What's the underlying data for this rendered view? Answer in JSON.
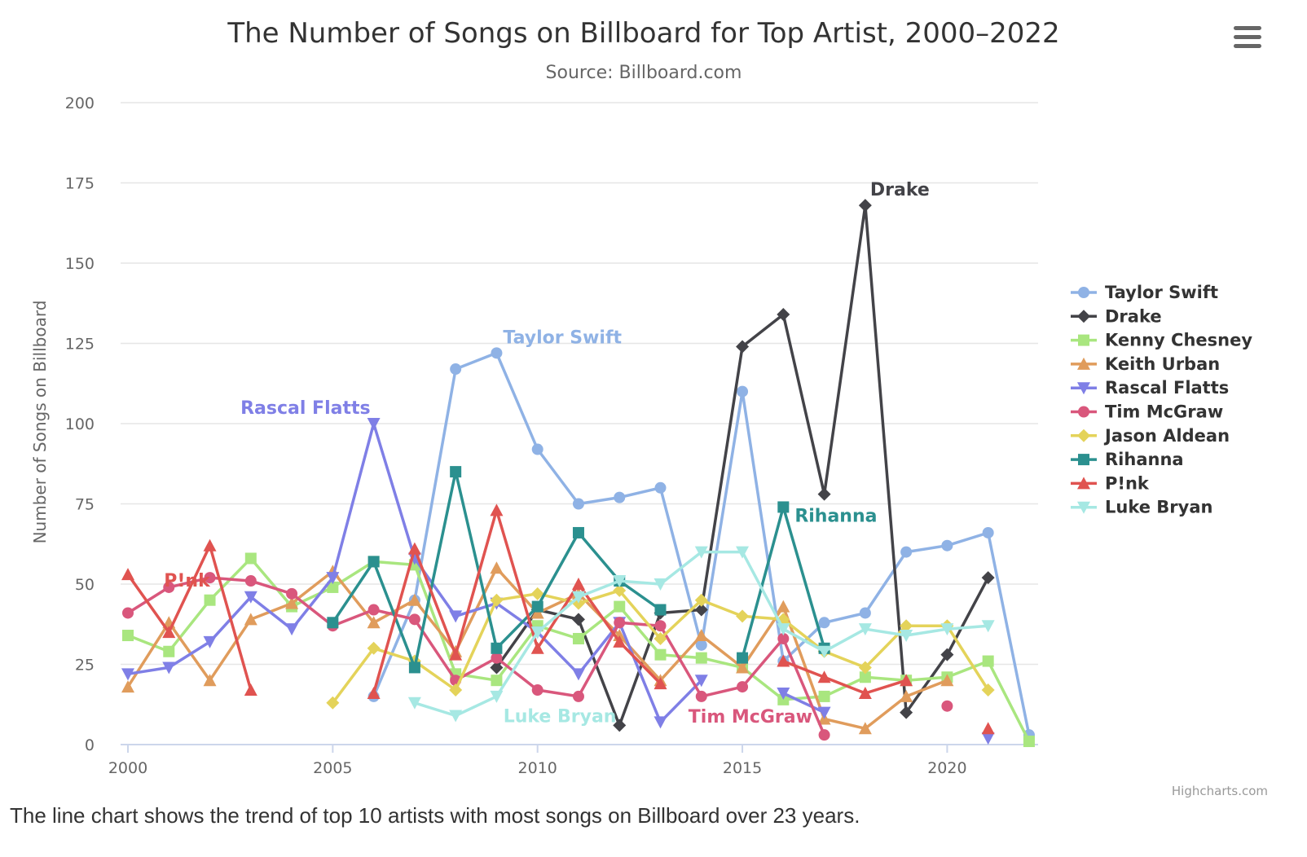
{
  "header": {
    "title": "The Number of Songs on Billboard for Top Artist, 2000–2022",
    "subtitle": "Source: Billboard.com",
    "menu_icon": "hamburger-menu-icon"
  },
  "credits": "Highcharts.com",
  "caption": "The line chart shows the trend of top 10 artists with most songs on Billboard over 23 years.",
  "chart_data": {
    "type": "line",
    "title": "The Number of Songs on Billboard for Top Artist, 2000–2022",
    "subtitle": "Source: Billboard.com",
    "xlabel": "",
    "ylabel": "Number of Songs on Billboard",
    "xlim": [
      2000,
      2022
    ],
    "ylim": [
      0,
      200
    ],
    "x_ticks": [
      2000,
      2005,
      2010,
      2015,
      2020
    ],
    "y_ticks": [
      0,
      25,
      50,
      75,
      100,
      125,
      150,
      175,
      200
    ],
    "grid": true,
    "legend_position": "right",
    "series": [
      {
        "name": "Taylor Swift",
        "color": "#8fb2e5",
        "marker": "circle",
        "label": {
          "text": "Taylor Swift",
          "year": 2009,
          "value": 122
        },
        "data": [
          [
            2006,
            15
          ],
          [
            2007,
            45
          ],
          [
            2008,
            117
          ],
          [
            2009,
            122
          ],
          [
            2010,
            92
          ],
          [
            2011,
            75
          ],
          [
            2012,
            77
          ],
          [
            2013,
            80
          ],
          [
            2014,
            31
          ],
          [
            2015,
            110
          ],
          [
            2016,
            26
          ],
          [
            2017,
            38
          ],
          [
            2018,
            41
          ],
          [
            2019,
            60
          ],
          [
            2020,
            62
          ],
          [
            2021,
            66
          ],
          [
            2022,
            3
          ]
        ]
      },
      {
        "name": "Drake",
        "color": "#434348",
        "marker": "diamond",
        "label": {
          "text": "Drake",
          "year": 2018,
          "value": 168
        },
        "data": [
          [
            2009,
            24
          ],
          [
            2010,
            42
          ],
          [
            2011,
            39
          ],
          [
            2012,
            6
          ],
          [
            2013,
            41
          ],
          [
            2014,
            42
          ],
          [
            2015,
            124
          ],
          [
            2016,
            134
          ],
          [
            2017,
            78
          ],
          [
            2018,
            168
          ],
          [
            2019,
            10
          ],
          [
            2020,
            28
          ],
          [
            2021,
            52
          ]
        ]
      },
      {
        "name": "Kenny Chesney",
        "color": "#a9e67f",
        "marker": "square",
        "data": [
          [
            2000,
            34
          ],
          [
            2001,
            29
          ],
          [
            2002,
            45
          ],
          [
            2003,
            58
          ],
          [
            2004,
            43
          ],
          [
            2005,
            49
          ],
          [
            2006,
            57
          ],
          [
            2007,
            56
          ],
          [
            2008,
            22
          ],
          [
            2009,
            20
          ],
          [
            2010,
            37
          ],
          [
            2011,
            33
          ],
          [
            2012,
            43
          ],
          [
            2013,
            28
          ],
          [
            2014,
            27
          ],
          [
            2015,
            24
          ],
          [
            2016,
            14
          ],
          [
            2017,
            15
          ],
          [
            2018,
            21
          ],
          [
            2019,
            20
          ],
          [
            2020,
            21
          ],
          [
            2021,
            26
          ],
          [
            2022,
            1
          ]
        ]
      },
      {
        "name": "Keith Urban",
        "color": "#e09c5c",
        "marker": "triangle",
        "data": [
          [
            2000,
            18
          ],
          [
            2001,
            38
          ],
          [
            2002,
            20
          ],
          [
            2003,
            39
          ],
          [
            2004,
            44
          ],
          [
            2005,
            54
          ],
          [
            2006,
            38
          ],
          [
            2007,
            45
          ],
          [
            2008,
            29
          ],
          [
            2009,
            55
          ],
          [
            2010,
            41
          ],
          [
            2011,
            47
          ],
          [
            2012,
            34
          ],
          [
            2013,
            20
          ],
          [
            2014,
            34
          ],
          [
            2015,
            24
          ],
          [
            2016,
            43
          ],
          [
            2017,
            8
          ],
          [
            2018,
            5
          ],
          [
            2019,
            15
          ],
          [
            2020,
            20
          ]
        ]
      },
      {
        "name": "Rascal Flatts",
        "color": "#7f7fe6",
        "marker": "triangle-down",
        "label": {
          "text": "Rascal Flatts",
          "year": 2006,
          "value": 100
        },
        "data": [
          [
            2000,
            22
          ],
          [
            2001,
            24
          ],
          [
            2002,
            32
          ],
          [
            2003,
            46
          ],
          [
            2004,
            36
          ],
          [
            2005,
            52
          ],
          [
            2006,
            100
          ],
          [
            2007,
            58
          ],
          [
            2008,
            40
          ],
          [
            2009,
            44
          ],
          [
            2010,
            35
          ],
          [
            2011,
            22
          ],
          [
            2012,
            38
          ],
          [
            2013,
            7
          ],
          [
            2014,
            20
          ],
          [
            2016,
            16
          ],
          [
            2017,
            10
          ],
          [
            2021,
            2
          ]
        ]
      },
      {
        "name": "Tim McGraw",
        "color": "#d9577c",
        "marker": "circle",
        "label": {
          "text": "Tim McGraw",
          "year": 2014,
          "value": 15
        },
        "data": [
          [
            2000,
            41
          ],
          [
            2001,
            49
          ],
          [
            2002,
            52
          ],
          [
            2003,
            51
          ],
          [
            2004,
            47
          ],
          [
            2005,
            37
          ],
          [
            2006,
            42
          ],
          [
            2007,
            39
          ],
          [
            2008,
            20
          ],
          [
            2009,
            27
          ],
          [
            2010,
            17
          ],
          [
            2011,
            15
          ],
          [
            2012,
            38
          ],
          [
            2013,
            37
          ],
          [
            2014,
            15
          ],
          [
            2015,
            18
          ],
          [
            2016,
            33
          ],
          [
            2017,
            3
          ],
          [
            2020,
            12
          ]
        ]
      },
      {
        "name": "Jason Aldean",
        "color": "#e4d35a",
        "marker": "diamond",
        "data": [
          [
            2005,
            13
          ],
          [
            2006,
            30
          ],
          [
            2007,
            26
          ],
          [
            2008,
            17
          ],
          [
            2009,
            45
          ],
          [
            2010,
            47
          ],
          [
            2011,
            44
          ],
          [
            2012,
            48
          ],
          [
            2013,
            33
          ],
          [
            2014,
            45
          ],
          [
            2015,
            40
          ],
          [
            2016,
            39
          ],
          [
            2017,
            29
          ],
          [
            2018,
            24
          ],
          [
            2019,
            37
          ],
          [
            2020,
            37
          ],
          [
            2021,
            17
          ]
        ]
      },
      {
        "name": "Rihanna",
        "color": "#2b908f",
        "marker": "square",
        "label": {
          "text": "Rihanna",
          "year": 2016,
          "value": 74
        },
        "data": [
          [
            2005,
            38
          ],
          [
            2006,
            57
          ],
          [
            2007,
            24
          ],
          [
            2008,
            85
          ],
          [
            2009,
            30
          ],
          [
            2010,
            43
          ],
          [
            2011,
            66
          ],
          [
            2012,
            51
          ],
          [
            2013,
            42
          ],
          [
            2015,
            27
          ],
          [
            2016,
            74
          ],
          [
            2017,
            30
          ]
        ]
      },
      {
        "name": "P!nk",
        "color": "#e05350",
        "marker": "triangle",
        "label": {
          "text": "P!nk",
          "year": 2001,
          "value": 36
        },
        "data": [
          [
            2000,
            53
          ],
          [
            2001,
            35
          ],
          [
            2002,
            62
          ],
          [
            2003,
            17
          ],
          [
            2006,
            16
          ],
          [
            2007,
            61
          ],
          [
            2008,
            28
          ],
          [
            2009,
            73
          ],
          [
            2010,
            30
          ],
          [
            2011,
            50
          ],
          [
            2012,
            32
          ],
          [
            2013,
            19
          ],
          [
            2016,
            26
          ],
          [
            2017,
            21
          ],
          [
            2018,
            16
          ],
          [
            2019,
            20
          ],
          [
            2021,
            5
          ]
        ]
      },
      {
        "name": "Luke Bryan",
        "color": "#a6e8e3",
        "marker": "triangle-down",
        "label": {
          "text": "Luke Bryan",
          "year": 2010,
          "value": 10
        },
        "data": [
          [
            2007,
            13
          ],
          [
            2008,
            9
          ],
          [
            2009,
            15
          ],
          [
            2010,
            35
          ],
          [
            2011,
            46
          ],
          [
            2012,
            51
          ],
          [
            2013,
            50
          ],
          [
            2014,
            60
          ],
          [
            2015,
            60
          ],
          [
            2016,
            36
          ],
          [
            2017,
            29
          ],
          [
            2018,
            36
          ],
          [
            2019,
            34
          ],
          [
            2020,
            36
          ],
          [
            2021,
            37
          ]
        ]
      }
    ]
  }
}
